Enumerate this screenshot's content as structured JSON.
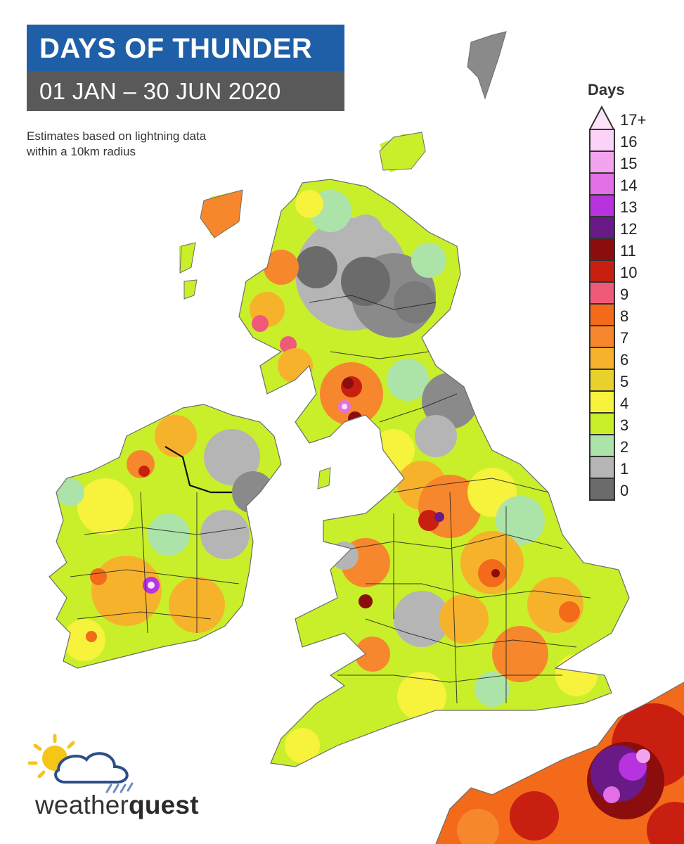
{
  "title": "DAYS OF THUNDER",
  "subtitle": "01 JAN – 30 JUN 2020",
  "note": "Estimates based on lightning data within a 10km radius",
  "legend": {
    "title": "Days",
    "items": [
      {
        "label": "17+",
        "color": "#fbe3f9"
      },
      {
        "label": "16",
        "color": "#fbd3f8"
      },
      {
        "label": "15",
        "color": "#f3a4ef"
      },
      {
        "label": "14",
        "color": "#e36fe6"
      },
      {
        "label": "13",
        "color": "#b833e0"
      },
      {
        "label": "12",
        "color": "#6a1a86"
      },
      {
        "label": "11",
        "color": "#8c0d0d"
      },
      {
        "label": "10",
        "color": "#c81f10"
      },
      {
        "label": "9",
        "color": "#f05a7a"
      },
      {
        "label": "8",
        "color": "#f26a1a"
      },
      {
        "label": "7",
        "color": "#f7872c"
      },
      {
        "label": "6",
        "color": "#f7b22c"
      },
      {
        "label": "5",
        "color": "#e7d12a"
      },
      {
        "label": "4",
        "color": "#f7f23c"
      },
      {
        "label": "3",
        "color": "#c8ef2a"
      },
      {
        "label": "2",
        "color": "#ace3a8"
      },
      {
        "label": "1",
        "color": "#b5b5b5"
      },
      {
        "label": "0",
        "color": "#6b6b6b"
      }
    ]
  },
  "logo": {
    "brand_light": "weather",
    "brand_bold": "quest",
    "icon": "sun-cloud-rain-icon"
  }
}
